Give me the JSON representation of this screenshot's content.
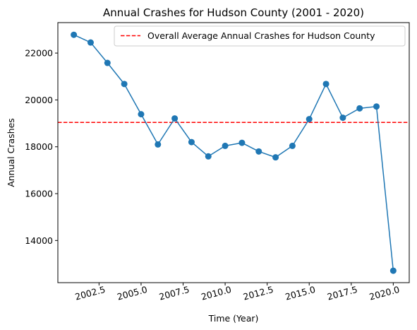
{
  "chart_data": {
    "type": "line",
    "title": "Annual Crashes for Hudson County (2001 - 2020)",
    "xlabel": "Time (Year)",
    "ylabel": "Annual Crashes",
    "xlim": [
      2000.05,
      2020.95
    ],
    "ylim": [
      12200,
      23300
    ],
    "xticks": [
      2002.5,
      2005.0,
      2007.5,
      2010.0,
      2012.5,
      2015.0,
      2017.5,
      2020.0
    ],
    "xtick_labels": [
      "2002.5",
      "2005.0",
      "2007.5",
      "2010.0",
      "2012.5",
      "2015.0",
      "2017.5",
      "2020.0"
    ],
    "yticks": [
      14000,
      16000,
      18000,
      20000,
      22000
    ],
    "ytick_labels": [
      "14000",
      "16000",
      "18000",
      "20000",
      "22000"
    ],
    "grid": false,
    "legend_position": "top-right",
    "series": [
      {
        "kind": "line-with-markers",
        "color": "#1f77b4",
        "x": [
          2001,
          2002,
          2003,
          2004,
          2005,
          2006,
          2007,
          2008,
          2009,
          2010,
          2011,
          2012,
          2013,
          2014,
          2015,
          2016,
          2017,
          2018,
          2019,
          2020
        ],
        "y": [
          22780,
          22450,
          21580,
          20680,
          19390,
          18100,
          19210,
          18200,
          17590,
          18040,
          18170,
          17800,
          17550,
          18040,
          19180,
          20680,
          19240,
          19640,
          19720,
          12710
        ]
      },
      {
        "name": "Overall Average Annual Crashes for Hudson County",
        "kind": "hline-dashed",
        "color": "#ff0000",
        "y": 19040
      }
    ]
  }
}
